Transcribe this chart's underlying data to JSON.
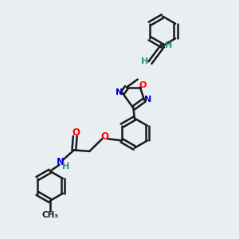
{
  "background_color": "#e8eef2",
  "bond_color": "#1a1a1a",
  "atom_colors": {
    "O": "#ff0000",
    "N": "#0000cc",
    "H": "#2e8b8b",
    "C": "#1a1a1a"
  },
  "figsize": [
    3.0,
    3.0
  ],
  "dpi": 100
}
